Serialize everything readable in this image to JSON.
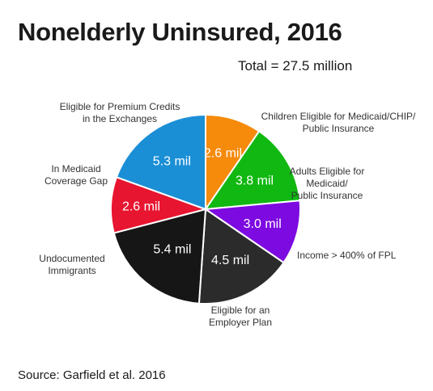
{
  "title": "Nonelderly Uninsured, 2016",
  "subtitle": "Total = 27.5 million",
  "source": "Source: Garfield et al. 2016",
  "chart_data": {
    "type": "pie",
    "unit": "million",
    "total": 27.5,
    "slices": [
      {
        "label": "Children Eligible for Medicaid/CHIP/ Public Insurance",
        "value": 2.6,
        "value_label": "2.6 mil",
        "color": "#f58a0b"
      },
      {
        "label": "Adults Eligible for Medicaid/ Public Insurance",
        "value": 3.8,
        "value_label": "3.8 mil",
        "color": "#11b811"
      },
      {
        "label": "Income > 400% of FPL",
        "value": 3.0,
        "value_label": "3.0 mil",
        "color": "#7d0ae0"
      },
      {
        "label": "Eligible for an Employer Plan",
        "value": 4.5,
        "value_label": "4.5 mil",
        "color": "#2b2b2b"
      },
      {
        "label": "Undocumented Immigrants",
        "value": 5.4,
        "value_label": "5.4 mil",
        "color": "#161616"
      },
      {
        "label": "In Medicaid Coverage Gap",
        "value": 2.6,
        "value_label": "2.6 mil",
        "color": "#e81530"
      },
      {
        "label": "Eligible for Premium Credits in the Exchanges",
        "value": 5.3,
        "value_label": "5.3 mil",
        "color": "#1b8fd6"
      }
    ]
  }
}
